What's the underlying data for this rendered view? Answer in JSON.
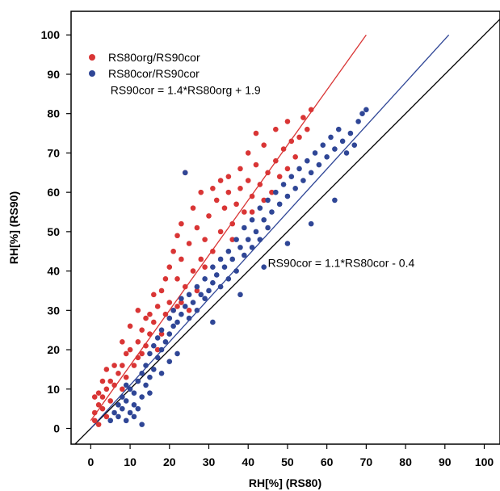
{
  "chart_data": {
    "type": "scatter",
    "title": "",
    "xlabel": "RH[%] (RS80)",
    "ylabel": "RH[%] (RS90)",
    "xlim": [
      -5,
      104
    ],
    "ylim": [
      -4,
      106
    ],
    "xticks": [
      0,
      10,
      20,
      30,
      40,
      50,
      60,
      70,
      80,
      90,
      100
    ],
    "yticks": [
      0,
      10,
      20,
      30,
      40,
      50,
      60,
      70,
      80,
      90,
      100
    ],
    "grid": false,
    "legend_position": "top-left",
    "series": [
      {
        "name": "RS80org/RS90cor",
        "color": "#d93535",
        "points": [
          [
            1,
            2
          ],
          [
            1,
            4
          ],
          [
            2,
            6
          ],
          [
            1,
            8
          ],
          [
            2,
            9
          ],
          [
            3,
            5
          ],
          [
            3,
            8
          ],
          [
            4,
            10
          ],
          [
            5,
            12
          ],
          [
            4,
            15
          ],
          [
            5,
            7
          ],
          [
            6,
            11
          ],
          [
            7,
            14
          ],
          [
            8,
            16
          ],
          [
            8,
            10
          ],
          [
            9,
            13
          ],
          [
            9,
            19
          ],
          [
            10,
            20
          ],
          [
            11,
            16
          ],
          [
            12,
            22
          ],
          [
            12,
            18
          ],
          [
            13,
            25
          ],
          [
            14,
            21
          ],
          [
            15,
            24
          ],
          [
            15,
            29
          ],
          [
            16,
            27
          ],
          [
            17,
            31
          ],
          [
            18,
            24
          ],
          [
            18,
            35
          ],
          [
            19,
            29
          ],
          [
            19,
            38
          ],
          [
            20,
            32
          ],
          [
            20,
            41
          ],
          [
            21,
            45
          ],
          [
            21,
            30
          ],
          [
            22,
            38
          ],
          [
            22,
            49
          ],
          [
            23,
            43
          ],
          [
            23,
            52
          ],
          [
            24,
            65
          ],
          [
            24,
            36
          ],
          [
            25,
            47
          ],
          [
            26,
            40
          ],
          [
            26,
            56
          ],
          [
            27,
            51
          ],
          [
            28,
            43
          ],
          [
            28,
            60
          ],
          [
            29,
            48
          ],
          [
            30,
            54
          ],
          [
            31,
            61
          ],
          [
            31,
            45
          ],
          [
            32,
            58
          ],
          [
            33,
            50
          ],
          [
            33,
            63
          ],
          [
            34,
            56
          ],
          [
            35,
            60
          ],
          [
            35,
            64
          ],
          [
            36,
            52
          ],
          [
            37,
            57
          ],
          [
            38,
            66
          ],
          [
            38,
            61
          ],
          [
            39,
            55
          ],
          [
            40,
            63
          ],
          [
            40,
            70
          ],
          [
            41,
            59
          ],
          [
            42,
            67
          ],
          [
            42,
            75
          ],
          [
            43,
            62
          ],
          [
            44,
            58
          ],
          [
            44,
            72
          ],
          [
            45,
            65
          ],
          [
            46,
            60
          ],
          [
            47,
            68
          ],
          [
            47,
            76
          ],
          [
            48,
            64
          ],
          [
            49,
            71
          ],
          [
            50,
            66
          ],
          [
            50,
            78
          ],
          [
            51,
            73
          ],
          [
            52,
            69
          ],
          [
            53,
            74
          ],
          [
            54,
            79
          ],
          [
            55,
            76
          ],
          [
            56,
            81
          ],
          [
            12,
            30
          ],
          [
            14,
            28
          ],
          [
            17,
            20
          ],
          [
            23,
            32
          ],
          [
            25,
            30
          ],
          [
            27,
            35
          ],
          [
            10,
            26
          ],
          [
            6,
            16
          ],
          [
            3,
            12
          ],
          [
            4,
            3
          ],
          [
            2,
            1
          ],
          [
            8,
            22
          ],
          [
            13,
            19
          ],
          [
            16,
            34
          ],
          [
            22,
            31
          ],
          [
            29,
            41
          ],
          [
            36,
            48
          ],
          [
            41,
            55
          ]
        ]
      },
      {
        "name": "RS80cor/RS90cor",
        "color": "#2f4696",
        "points": [
          [
            5,
            2
          ],
          [
            6,
            4
          ],
          [
            7,
            3
          ],
          [
            7,
            6
          ],
          [
            8,
            5
          ],
          [
            8,
            8
          ],
          [
            9,
            2
          ],
          [
            9,
            7
          ],
          [
            10,
            4
          ],
          [
            10,
            10
          ],
          [
            11,
            6
          ],
          [
            11,
            9
          ],
          [
            12,
            12
          ],
          [
            12,
            5
          ],
          [
            13,
            8
          ],
          [
            13,
            14
          ],
          [
            14,
            11
          ],
          [
            14,
            16
          ],
          [
            15,
            13
          ],
          [
            15,
            19
          ],
          [
            16,
            15
          ],
          [
            16,
            21
          ],
          [
            17,
            18
          ],
          [
            17,
            23
          ],
          [
            18,
            20
          ],
          [
            18,
            25
          ],
          [
            19,
            22
          ],
          [
            20,
            24
          ],
          [
            20,
            28
          ],
          [
            21,
            26
          ],
          [
            21,
            30
          ],
          [
            22,
            27
          ],
          [
            23,
            29
          ],
          [
            23,
            33
          ],
          [
            24,
            31
          ],
          [
            25,
            28
          ],
          [
            25,
            34
          ],
          [
            26,
            32
          ],
          [
            27,
            30
          ],
          [
            27,
            36
          ],
          [
            28,
            34
          ],
          [
            29,
            33
          ],
          [
            29,
            38
          ],
          [
            30,
            35
          ],
          [
            31,
            37
          ],
          [
            31,
            41
          ],
          [
            32,
            39
          ],
          [
            33,
            36
          ],
          [
            33,
            43
          ],
          [
            34,
            41
          ],
          [
            35,
            38
          ],
          [
            35,
            45
          ],
          [
            36,
            43
          ],
          [
            37,
            40
          ],
          [
            37,
            48
          ],
          [
            38,
            46
          ],
          [
            39,
            44
          ],
          [
            39,
            51
          ],
          [
            40,
            48
          ],
          [
            41,
            46
          ],
          [
            41,
            53
          ],
          [
            42,
            50
          ],
          [
            43,
            48
          ],
          [
            43,
            56
          ],
          [
            44,
            53
          ],
          [
            45,
            51
          ],
          [
            45,
            58
          ],
          [
            46,
            55
          ],
          [
            47,
            60
          ],
          [
            48,
            57
          ],
          [
            49,
            62
          ],
          [
            50,
            59
          ],
          [
            51,
            64
          ],
          [
            52,
            61
          ],
          [
            53,
            66
          ],
          [
            54,
            63
          ],
          [
            55,
            68
          ],
          [
            56,
            65
          ],
          [
            57,
            70
          ],
          [
            58,
            67
          ],
          [
            59,
            72
          ],
          [
            60,
            69
          ],
          [
            61,
            74
          ],
          [
            62,
            71
          ],
          [
            63,
            76
          ],
          [
            64,
            73
          ],
          [
            65,
            70
          ],
          [
            66,
            75
          ],
          [
            67,
            72
          ],
          [
            68,
            78
          ],
          [
            69,
            80
          ],
          [
            70,
            81
          ],
          [
            24,
            65
          ],
          [
            31,
            27
          ],
          [
            38,
            34
          ],
          [
            44,
            41
          ],
          [
            50,
            47
          ],
          [
            56,
            52
          ],
          [
            62,
            58
          ],
          [
            9,
            11
          ],
          [
            11,
            3
          ],
          [
            13,
            1
          ],
          [
            15,
            9
          ],
          [
            18,
            14
          ],
          [
            20,
            17
          ],
          [
            22,
            19
          ]
        ]
      }
    ],
    "reference_lines": [
      {
        "name": "identity",
        "color": "#000000",
        "from": [
          -5,
          -5
        ],
        "to": [
          104,
          104
        ]
      },
      {
        "name": "fit-org",
        "color": "#d93535",
        "from": [
          0,
          2
        ],
        "to": [
          70,
          100
        ]
      },
      {
        "name": "fit-cor",
        "color": "#2f4696",
        "from": [
          0,
          0
        ],
        "to": [
          91,
          100
        ]
      }
    ],
    "annotations": [
      {
        "text": "RS90cor = 1.4*RS80org + 1.9",
        "at": [
          5,
          85
        ]
      },
      {
        "text": "RS90cor = 1.1*RS80cor - 0.4",
        "at": [
          45,
          41
        ]
      }
    ]
  }
}
